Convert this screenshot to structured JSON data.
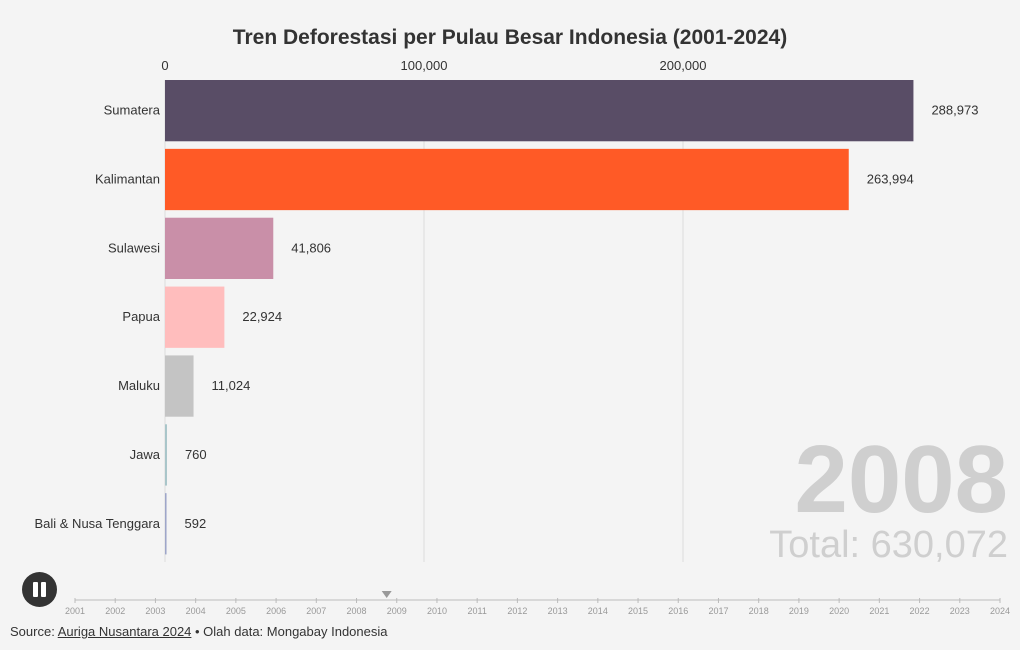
{
  "title": "Tren Deforestasi per Pulau Besar Indonesia (2001-2024)",
  "chart_data": {
    "type": "bar",
    "orientation": "horizontal",
    "title": "Tren Deforestasi per Pulau Besar Indonesia (2001-2024)",
    "year_label": "2008",
    "total_label": "Total: 630,072",
    "x_ticks": [
      0,
      100000,
      200000
    ],
    "x_tick_labels": [
      "0",
      "100,000",
      "200,000"
    ],
    "xlim": [
      0,
      300000
    ],
    "grid": true,
    "categories": [
      "Sumatera",
      "Kalimantan",
      "Sulawesi",
      "Papua",
      "Maluku",
      "Jawa",
      "Bali & Nusa Tenggara"
    ],
    "values": [
      288973,
      263994,
      41806,
      22924,
      11024,
      760,
      592
    ],
    "value_labels": [
      "288,973",
      "263,994",
      "41,806",
      "22,924",
      "11,024",
      "760",
      "592"
    ],
    "colors": [
      "#594d66",
      "#ff5a26",
      "#c98fa8",
      "#ffbdbd",
      "#c4c4c4",
      "#a8c5c9",
      "#9ea6c9"
    ],
    "timeline_years": [
      "2001",
      "2002",
      "2003",
      "2004",
      "2005",
      "2006",
      "2007",
      "2008",
      "2009",
      "2010",
      "2011",
      "2012",
      "2013",
      "2014",
      "2015",
      "2016",
      "2017",
      "2018",
      "2019",
      "2020",
      "2021",
      "2022",
      "2023",
      "2024"
    ],
    "timeline_current": "2008"
  },
  "controls": {
    "pause_icon": "pause-icon"
  },
  "source": {
    "prefix": "Source: ",
    "link_text": "Auriga Nusantara 2024",
    "suffix": " • Olah data: Mongabay Indonesia"
  }
}
